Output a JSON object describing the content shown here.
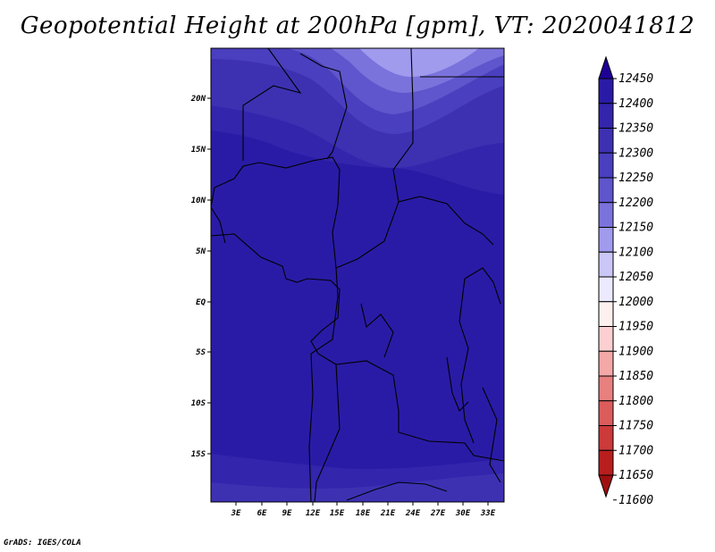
{
  "title": "Geopotential Height at 200hPa [gpm], VT: 2020041812",
  "credit": "GrADS: IGES/COLA",
  "lat_axis": {
    "labels": [
      "20N",
      "15N",
      "10N",
      "5N",
      "EQ",
      "5S",
      "10S",
      "15S"
    ],
    "values": [
      20,
      15,
      10,
      5,
      0,
      -5,
      -10,
      -15
    ]
  },
  "lon_axis": {
    "labels": [
      "3E",
      "6E",
      "9E",
      "12E",
      "15E",
      "18E",
      "21E",
      "24E",
      "27E",
      "30E",
      "33E"
    ],
    "values": [
      3,
      6,
      9,
      12,
      15,
      18,
      21,
      24,
      27,
      30,
      33
    ]
  },
  "extent": {
    "lon_min": 0.5,
    "lon_max": 34.5,
    "lat_min": -20,
    "lat_max": 25
  },
  "colorbar": {
    "levels": [
      "12450",
      "12400",
      "12350",
      "12300",
      "12250",
      "12200",
      "12150",
      "12100",
      "12050",
      "12000",
      "11950",
      "11900",
      "11850",
      "11800",
      "11750",
      "11700",
      "11650",
      "11600"
    ],
    "colors": [
      "#1e0096",
      "#2a1ba6",
      "#3325ac",
      "#3d31b2",
      "#4a3fbe",
      "#5f55cc",
      "#7b73dc",
      "#a19bee",
      "#cac6f6",
      "#eceaff",
      "#fff0f0",
      "#fcd0d0",
      "#f4a8a8",
      "#e88080",
      "#dc5c5c",
      "#cc3a3a",
      "#b81e1e",
      "#a00f0f"
    ]
  },
  "colors": {
    "background_field": "#2a1ba6",
    "border": "#000000"
  }
}
